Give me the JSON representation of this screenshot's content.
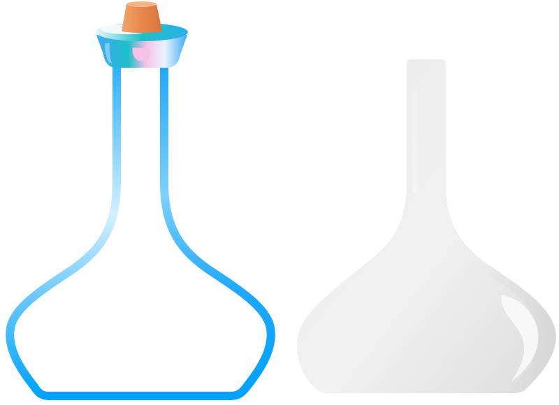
{
  "illustration": {
    "outline_flask": {
      "icon": "flask-outline-icon",
      "stroke_color": "#00A2FF",
      "stroke_light_color": "#D4F0FF"
    },
    "stopper": {
      "icon": "cork-stopper-icon",
      "cork_color": "#E8874E",
      "collar_color": "#1FBFC9",
      "collar_accent_color": "#F7C1E6"
    },
    "silhouette_flask": {
      "icon": "flask-silhouette-icon",
      "fill_color": "#EDEDED",
      "shadow_color": "#D6D6D6"
    }
  }
}
